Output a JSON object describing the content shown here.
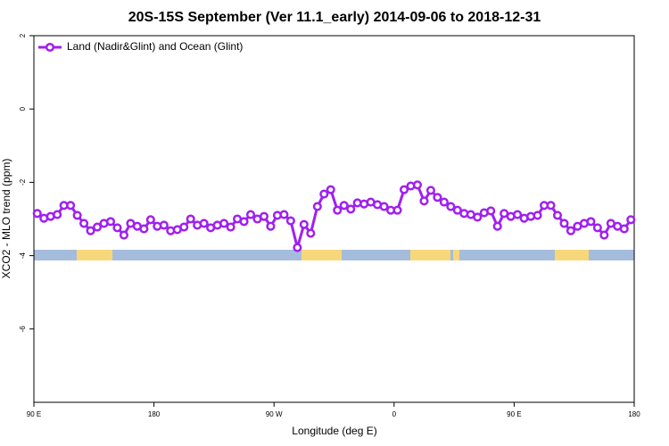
{
  "chart_data": {
    "type": "line",
    "title": "20S-15S September (Ver 11.1_early)   2014-09-06 to 2018-12-31",
    "x_label": "Longitude (deg E)",
    "y_label": "XCO2 - MLO trend (ppm)",
    "xlim": [
      90,
      540
    ],
    "xticks": [
      {
        "value": 90,
        "label": "90 E"
      },
      {
        "value": 180,
        "label": "180"
      },
      {
        "value": 270,
        "label": "90 W"
      },
      {
        "value": 360,
        "label": "0"
      },
      {
        "value": 450,
        "label": "90 E"
      },
      {
        "value": 540,
        "label": "180"
      }
    ],
    "ylim": [
      -8,
      2
    ],
    "yticks": [
      2,
      0,
      -2,
      -4,
      -6
    ],
    "legend": "top-left",
    "x": [
      92.5,
      97.5,
      102.5,
      107.5,
      112.5,
      117.5,
      122.5,
      127.5,
      132.5,
      137.5,
      142.5,
      147.5,
      152.5,
      157.5,
      162.5,
      167.5,
      172.5,
      177.5,
      182.5,
      187.5,
      192.5,
      197.5,
      202.5,
      207.5,
      212.5,
      217.5,
      222.5,
      227.5,
      232.5,
      237.5,
      242.5,
      247.5,
      252.5,
      257.5,
      262.5,
      267.5,
      272.5,
      277.5,
      282.5,
      287.5,
      292.5,
      297.5,
      302.5,
      307.5,
      312.5,
      317.5,
      322.5,
      327.5,
      332.5,
      337.5,
      342.5,
      347.5,
      352.5,
      357.5,
      362.5,
      367.5,
      372.5,
      377.5,
      382.5,
      387.5,
      392.5,
      397.5,
      402.5,
      407.5,
      412.5,
      417.5,
      422.5,
      427.5,
      432.5,
      437.5,
      442.5,
      447.5,
      452.5,
      457.5,
      462.5,
      467.5,
      472.5,
      477.5,
      482.5,
      487.5,
      492.5,
      497.5,
      502.5,
      507.5,
      512.5,
      517.5,
      522.5,
      527.5,
      532.5,
      537.5
    ],
    "series": [
      {
        "name": "Land (Nadir&Glint) and Ocean (Glint)",
        "color": "#a020f0",
        "values": [
          -2.85,
          -2.98,
          -2.93,
          -2.88,
          -2.63,
          -2.63,
          -2.9,
          -3.12,
          -3.32,
          -3.22,
          -3.12,
          -3.07,
          -3.24,
          -3.44,
          -3.12,
          -3.2,
          -3.27,
          -3.02,
          -3.2,
          -3.17,
          -3.32,
          -3.29,
          -3.22,
          -3.0,
          -3.17,
          -3.12,
          -3.24,
          -3.17,
          -3.12,
          -3.22,
          -3.0,
          -3.07,
          -2.88,
          -3.0,
          -2.93,
          -3.2,
          -2.9,
          -2.88,
          -3.05,
          -3.78,
          -3.15,
          -3.39,
          -2.66,
          -2.32,
          -2.2,
          -2.76,
          -2.63,
          -2.73,
          -2.56,
          -2.59,
          -2.54,
          -2.61,
          -2.66,
          -2.76,
          -2.76,
          -2.2,
          -2.1,
          -2.07,
          -2.51,
          -2.22,
          -2.41,
          -2.54,
          -2.66,
          -2.76,
          -2.85,
          -2.88,
          -2.95,
          -2.83,
          -2.78,
          -3.2,
          -2.85,
          -2.93,
          -2.88,
          -2.98,
          -2.93,
          -2.9,
          -2.63,
          -2.63,
          -2.9,
          -3.12,
          -3.32,
          -3.2,
          -3.12,
          -3.07,
          -3.24,
          -3.44,
          -3.12,
          -3.2,
          -3.27,
          -3.02
        ]
      }
    ]
  }
}
